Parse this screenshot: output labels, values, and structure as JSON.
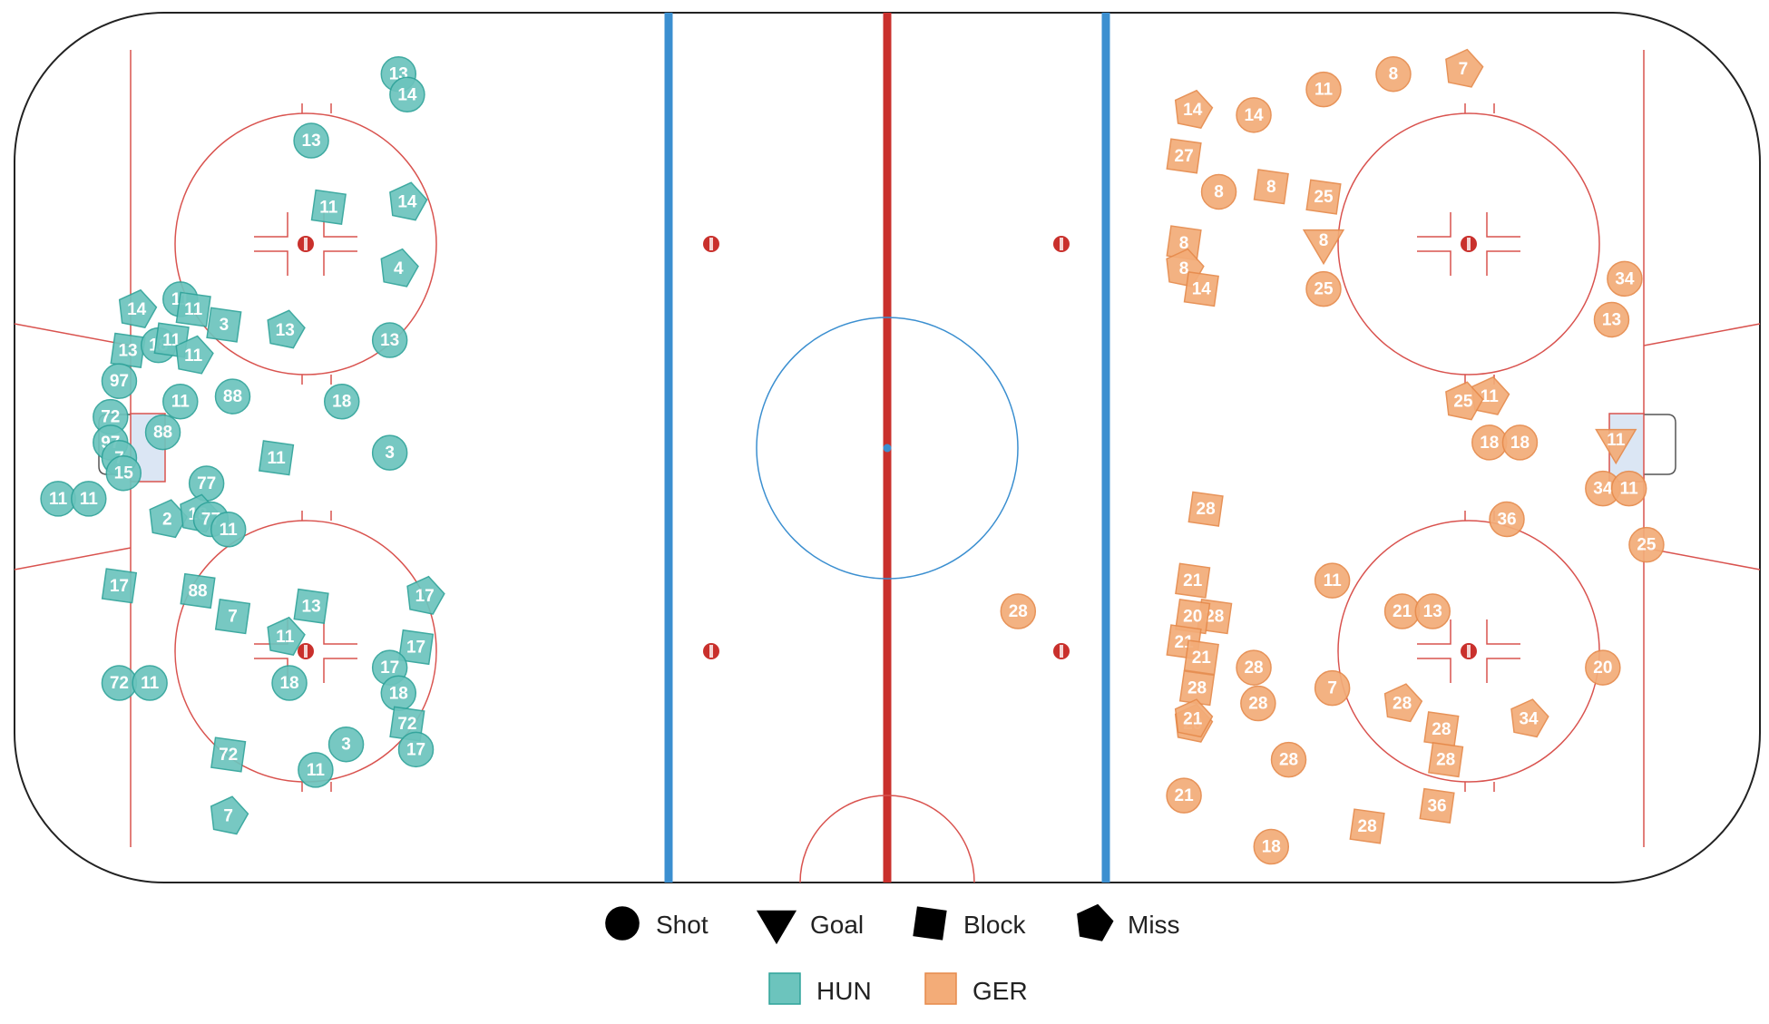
{
  "chart_data": {
    "type": "scatter",
    "title": "",
    "series": [
      {
        "name": "HUN",
        "color": "#6cc4bd",
        "stroke": "#2fa39a"
      },
      {
        "name": "GER",
        "color": "#f3ac78",
        "stroke": "#e68a4b"
      }
    ],
    "event_types": [
      "Shot",
      "Goal",
      "Block",
      "Miss"
    ],
    "x_range": [
      -100,
      100
    ],
    "y_range": [
      -42.5,
      42.5
    ],
    "points": [
      {
        "team": "HUN",
        "type": "Shot",
        "x": -56,
        "y": 36.5,
        "label": "13"
      },
      {
        "team": "HUN",
        "type": "Shot",
        "x": -55,
        "y": 34.5,
        "label": "14"
      },
      {
        "team": "HUN",
        "type": "Shot",
        "x": -66,
        "y": 30,
        "label": "13"
      },
      {
        "team": "HUN",
        "type": "Block",
        "x": -64,
        "y": 23.5,
        "label": "11"
      },
      {
        "team": "HUN",
        "type": "Miss",
        "x": -55,
        "y": 24,
        "label": "14"
      },
      {
        "team": "HUN",
        "type": "Miss",
        "x": -56,
        "y": 17.5,
        "label": "4"
      },
      {
        "team": "HUN",
        "type": "Miss",
        "x": -86,
        "y": 13.5,
        "label": "14"
      },
      {
        "team": "HUN",
        "type": "Shot",
        "x": -81,
        "y": 14.5,
        "label": "11"
      },
      {
        "team": "HUN",
        "type": "Block",
        "x": -79.5,
        "y": 13.5,
        "label": "11"
      },
      {
        "team": "HUN",
        "type": "Block",
        "x": -76,
        "y": 12,
        "label": "3"
      },
      {
        "team": "HUN",
        "type": "Miss",
        "x": -69,
        "y": 11.5,
        "label": "13"
      },
      {
        "team": "HUN",
        "type": "Shot",
        "x": -57,
        "y": 10.5,
        "label": "13"
      },
      {
        "team": "HUN",
        "type": "Block",
        "x": -87,
        "y": 9.5,
        "label": "13"
      },
      {
        "team": "HUN",
        "type": "Shot",
        "x": -83.5,
        "y": 10,
        "label": "18"
      },
      {
        "team": "HUN",
        "type": "Block",
        "x": -82,
        "y": 10.5,
        "label": "11"
      },
      {
        "team": "HUN",
        "type": "Miss",
        "x": -79.5,
        "y": 9,
        "label": "11"
      },
      {
        "team": "HUN",
        "type": "Shot",
        "x": -88,
        "y": 6.5,
        "label": "97"
      },
      {
        "team": "HUN",
        "type": "Shot",
        "x": -81,
        "y": 4.5,
        "label": "11"
      },
      {
        "team": "HUN",
        "type": "Shot",
        "x": -75,
        "y": 5,
        "label": "88"
      },
      {
        "team": "HUN",
        "type": "Shot",
        "x": -62.5,
        "y": 4.5,
        "label": "18"
      },
      {
        "team": "HUN",
        "type": "Shot",
        "x": -89,
        "y": 3,
        "label": "72"
      },
      {
        "team": "HUN",
        "type": "Shot",
        "x": -83,
        "y": 1.5,
        "label": "88"
      },
      {
        "team": "HUN",
        "type": "Shot",
        "x": -89,
        "y": 0.5,
        "label": "97"
      },
      {
        "team": "HUN",
        "type": "Shot",
        "x": -88,
        "y": -1,
        "label": "7"
      },
      {
        "team": "HUN",
        "type": "Shot",
        "x": -87.5,
        "y": -2.5,
        "label": "15"
      },
      {
        "team": "HUN",
        "type": "Block",
        "x": -70,
        "y": -1,
        "label": "11"
      },
      {
        "team": "HUN",
        "type": "Shot",
        "x": -57,
        "y": -0.5,
        "label": "3"
      },
      {
        "team": "HUN",
        "type": "Shot",
        "x": -95,
        "y": -5,
        "label": "11"
      },
      {
        "team": "HUN",
        "type": "Shot",
        "x": -91.5,
        "y": -5,
        "label": "11"
      },
      {
        "team": "HUN",
        "type": "Shot",
        "x": -78,
        "y": -3.5,
        "label": "77"
      },
      {
        "team": "HUN",
        "type": "Miss",
        "x": -82.5,
        "y": -7,
        "label": "2"
      },
      {
        "team": "HUN",
        "type": "Miss",
        "x": -79,
        "y": -6.5,
        "label": "18"
      },
      {
        "team": "HUN",
        "type": "Shot",
        "x": -77.5,
        "y": -7,
        "label": "77"
      },
      {
        "team": "HUN",
        "type": "Shot",
        "x": -75.5,
        "y": -8,
        "label": "11"
      },
      {
        "team": "HUN",
        "type": "Block",
        "x": -88,
        "y": -13.5,
        "label": "17"
      },
      {
        "team": "HUN",
        "type": "Block",
        "x": -79,
        "y": -14,
        "label": "88"
      },
      {
        "team": "HUN",
        "type": "Block",
        "x": -75,
        "y": -16.5,
        "label": "7"
      },
      {
        "team": "HUN",
        "type": "Block",
        "x": -66,
        "y": -15.5,
        "label": "13"
      },
      {
        "team": "HUN",
        "type": "Miss",
        "x": -53,
        "y": -14.5,
        "label": "17"
      },
      {
        "team": "HUN",
        "type": "Miss",
        "x": -69,
        "y": -18.5,
        "label": "11"
      },
      {
        "team": "HUN",
        "type": "Block",
        "x": -54,
        "y": -19.5,
        "label": "17"
      },
      {
        "team": "HUN",
        "type": "Shot",
        "x": -57,
        "y": -21.5,
        "label": "17"
      },
      {
        "team": "HUN",
        "type": "Shot",
        "x": -88,
        "y": -23,
        "label": "72"
      },
      {
        "team": "HUN",
        "type": "Shot",
        "x": -84.5,
        "y": -23,
        "label": "11"
      },
      {
        "team": "HUN",
        "type": "Shot",
        "x": -68.5,
        "y": -23,
        "label": "18"
      },
      {
        "team": "HUN",
        "type": "Shot",
        "x": -56,
        "y": -24,
        "label": "18"
      },
      {
        "team": "HUN",
        "type": "Block",
        "x": -55,
        "y": -27,
        "label": "72"
      },
      {
        "team": "HUN",
        "type": "Shot",
        "x": -62,
        "y": -29,
        "label": "3"
      },
      {
        "team": "HUN",
        "type": "Block",
        "x": -75.5,
        "y": -30,
        "label": "72"
      },
      {
        "team": "HUN",
        "type": "Shot",
        "x": -54,
        "y": -29.5,
        "label": "17"
      },
      {
        "team": "HUN",
        "type": "Shot",
        "x": -65.5,
        "y": -31.5,
        "label": "11"
      },
      {
        "team": "HUN",
        "type": "Miss",
        "x": -75.5,
        "y": -36,
        "label": "7"
      },
      {
        "team": "GER",
        "type": "Shot",
        "x": 50,
        "y": 35,
        "label": "11"
      },
      {
        "team": "GER",
        "type": "Shot",
        "x": 58,
        "y": 36.5,
        "label": "8"
      },
      {
        "team": "GER",
        "type": "Miss",
        "x": 66,
        "y": 37,
        "label": "7"
      },
      {
        "team": "GER",
        "type": "Miss",
        "x": 35,
        "y": 33,
        "label": "14"
      },
      {
        "team": "GER",
        "type": "Shot",
        "x": 42,
        "y": 32.5,
        "label": "14"
      },
      {
        "team": "GER",
        "type": "Block",
        "x": 34,
        "y": 28.5,
        "label": "27"
      },
      {
        "team": "GER",
        "type": "Shot",
        "x": 38,
        "y": 25,
        "label": "8"
      },
      {
        "team": "GER",
        "type": "Block",
        "x": 44,
        "y": 25.5,
        "label": "8"
      },
      {
        "team": "GER",
        "type": "Block",
        "x": 50,
        "y": 24.5,
        "label": "25"
      },
      {
        "team": "GER",
        "type": "Block",
        "x": 34,
        "y": 20,
        "label": "8"
      },
      {
        "team": "GER",
        "type": "Goal",
        "x": 50,
        "y": 20,
        "label": "8"
      },
      {
        "team": "GER",
        "type": "Miss",
        "x": 34,
        "y": 17.5,
        "label": "8"
      },
      {
        "team": "GER",
        "type": "Block",
        "x": 36,
        "y": 15.5,
        "label": "14"
      },
      {
        "team": "GER",
        "type": "Shot",
        "x": 50,
        "y": 15.5,
        "label": "25"
      },
      {
        "team": "GER",
        "type": "Shot",
        "x": 84.5,
        "y": 16.5,
        "label": "34"
      },
      {
        "team": "GER",
        "type": "Shot",
        "x": 83,
        "y": 12.5,
        "label": "13"
      },
      {
        "team": "GER",
        "type": "Miss",
        "x": 69,
        "y": 5,
        "label": "11"
      },
      {
        "team": "GER",
        "type": "Miss",
        "x": 66,
        "y": 4.5,
        "label": "25"
      },
      {
        "team": "GER",
        "type": "Shot",
        "x": 69,
        "y": 0.5,
        "label": "18"
      },
      {
        "team": "GER",
        "type": "Shot",
        "x": 72.5,
        "y": 0.5,
        "label": "18"
      },
      {
        "team": "GER",
        "type": "Goal",
        "x": 83.5,
        "y": 0.5,
        "label": "11"
      },
      {
        "team": "GER",
        "type": "Shot",
        "x": 82,
        "y": -4,
        "label": "34"
      },
      {
        "team": "GER",
        "type": "Shot",
        "x": 85,
        "y": -4,
        "label": "11"
      },
      {
        "team": "GER",
        "type": "Block",
        "x": 36.5,
        "y": -6,
        "label": "28"
      },
      {
        "team": "GER",
        "type": "Shot",
        "x": 71,
        "y": -7,
        "label": "36"
      },
      {
        "team": "GER",
        "type": "Shot",
        "x": 87,
        "y": -9.5,
        "label": "25"
      },
      {
        "team": "GER",
        "type": "Block",
        "x": 35,
        "y": -13,
        "label": "21"
      },
      {
        "team": "GER",
        "type": "Shot",
        "x": 51,
        "y": -13,
        "label": "11"
      },
      {
        "team": "GER",
        "type": "Shot",
        "x": 15,
        "y": -16,
        "label": "28"
      },
      {
        "team": "GER",
        "type": "Block",
        "x": 37.5,
        "y": -16.5,
        "label": "28"
      },
      {
        "team": "GER",
        "type": "Block",
        "x": 35,
        "y": -16.5,
        "label": "20"
      },
      {
        "team": "GER",
        "type": "Shot",
        "x": 59,
        "y": -16,
        "label": "21"
      },
      {
        "team": "GER",
        "type": "Shot",
        "x": 62.5,
        "y": -16,
        "label": "13"
      },
      {
        "team": "GER",
        "type": "Block",
        "x": 34,
        "y": -19,
        "label": "21"
      },
      {
        "team": "GER",
        "type": "Block",
        "x": 36,
        "y": -20.5,
        "label": "21"
      },
      {
        "team": "GER",
        "type": "Shot",
        "x": 42,
        "y": -21.5,
        "label": "28"
      },
      {
        "team": "GER",
        "type": "Block",
        "x": 35.5,
        "y": -23.5,
        "label": "28"
      },
      {
        "team": "GER",
        "type": "Shot",
        "x": 42.5,
        "y": -25,
        "label": "28"
      },
      {
        "team": "GER",
        "type": "Shot",
        "x": 51,
        "y": -23.5,
        "label": "7"
      },
      {
        "team": "GER",
        "type": "Shot",
        "x": 82,
        "y": -21.5,
        "label": "20"
      },
      {
        "team": "GER",
        "type": "Miss",
        "x": 59,
        "y": -25,
        "label": "28"
      },
      {
        "team": "GER",
        "type": "Miss",
        "x": 35,
        "y": -27,
        "label": "20"
      },
      {
        "team": "GER",
        "type": "Miss",
        "x": 35,
        "y": -26.5,
        "label": "21"
      },
      {
        "team": "GER",
        "type": "Block",
        "x": 63.5,
        "y": -27.5,
        "label": "28"
      },
      {
        "team": "GER",
        "type": "Block",
        "x": 64,
        "y": -30.5,
        "label": "28"
      },
      {
        "team": "GER",
        "type": "Miss",
        "x": 73.5,
        "y": -26.5,
        "label": "34"
      },
      {
        "team": "GER",
        "type": "Shot",
        "x": 46,
        "y": -30.5,
        "label": "28"
      },
      {
        "team": "GER",
        "type": "Shot",
        "x": 34,
        "y": -34,
        "label": "21"
      },
      {
        "team": "GER",
        "type": "Block",
        "x": 63,
        "y": -35,
        "label": "36"
      },
      {
        "team": "GER",
        "type": "Block",
        "x": 55,
        "y": -37,
        "label": "28"
      },
      {
        "team": "GER",
        "type": "Shot",
        "x": 44,
        "y": -39,
        "label": "18"
      }
    ]
  }
}
